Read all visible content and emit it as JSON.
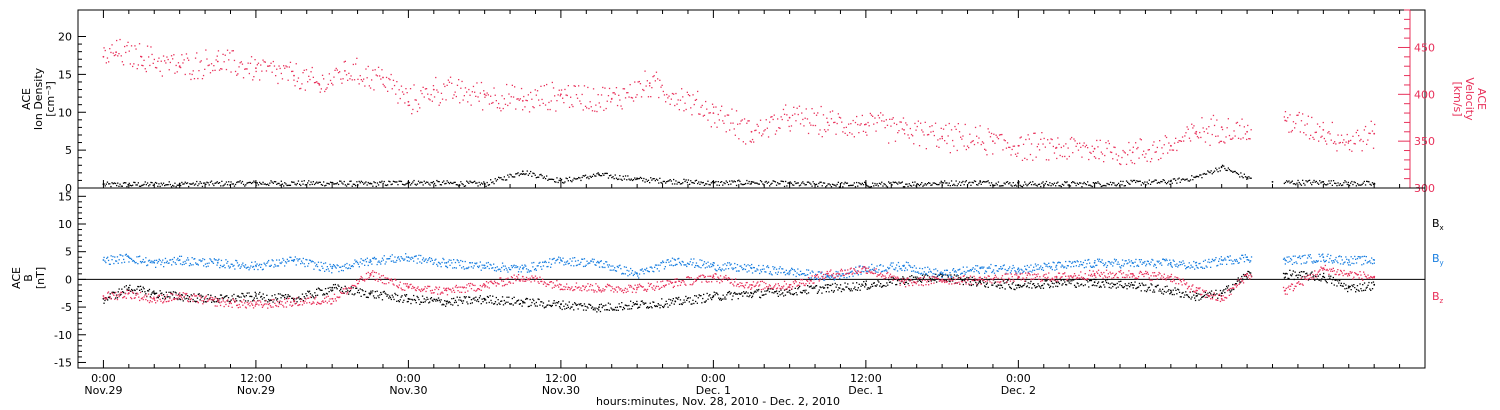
{
  "chart_data": [
    {
      "type": "scatter",
      "panel": "top",
      "ylabel_left": [
        "ACE",
        "Ion Density",
        "[cm⁻³]"
      ],
      "ylabel_right": [
        "ACE",
        "Velocity",
        "[km/s]"
      ],
      "ylim_left": [
        0,
        23.5
      ],
      "yticks_left": [
        0,
        5,
        10,
        15,
        20
      ],
      "ylim_right": [
        300,
        490
      ],
      "yticks_right": [
        300,
        350,
        400,
        450
      ],
      "colors": {
        "density": "#000000",
        "velocity": "#e8305a"
      },
      "series": [
        {
          "name": "Ion Density",
          "axis": "left",
          "color": "#000000",
          "x": [
            0,
            6,
            12,
            18,
            21,
            24,
            30,
            33,
            36,
            39,
            42,
            48,
            51,
            54,
            60,
            66,
            69,
            72,
            78,
            84,
            86,
            88,
            90,
            92,
            96,
            100
          ],
          "y": [
            0.5,
            0.6,
            0.7,
            0.7,
            0.6,
            0.8,
            0.6,
            2.2,
            1.0,
            1.8,
            1.2,
            0.7,
            0.8,
            0.6,
            0.5,
            0.7,
            0.8,
            0.6,
            0.6,
            0.9,
            1.5,
            2.8,
            1.4,
            0.8,
            0.8,
            0.6
          ]
        },
        {
          "name": "Velocity",
          "axis": "right",
          "color": "#e8305a",
          "x": [
            0,
            1,
            3,
            6,
            9,
            12,
            15,
            17,
            19,
            22,
            24,
            26,
            30,
            33,
            36,
            40,
            43,
            48,
            51,
            54,
            57,
            60,
            63,
            66,
            70,
            72,
            75,
            78,
            81,
            84,
            86,
            88,
            90,
            93,
            96,
            98,
            100
          ],
          "y": [
            440,
            445,
            440,
            430,
            435,
            428,
            420,
            410,
            425,
            418,
            392,
            405,
            400,
            393,
            400,
            395,
            412,
            380,
            360,
            375,
            370,
            368,
            362,
            355,
            350,
            345,
            343,
            342,
            338,
            345,
            360,
            365,
            360,
            372,
            362,
            350,
            358
          ]
        }
      ]
    },
    {
      "type": "scatter",
      "panel": "bottom",
      "ylabel_left": [
        "ACE",
        "B",
        "[nT]"
      ],
      "ylim": [
        -16,
        16.5
      ],
      "yticks": [
        -15,
        -10,
        -5,
        0,
        5,
        10,
        15
      ],
      "zero_line": true,
      "legend": [
        {
          "name": "Bx",
          "base": "B",
          "sub": "x",
          "color": "#000000"
        },
        {
          "name": "By",
          "base": "B",
          "sub": "y",
          "color": "#1a7fe0"
        },
        {
          "name": "Bz",
          "base": "B",
          "sub": "z",
          "color": "#e8305a"
        }
      ],
      "series": [
        {
          "name": "Bx",
          "color": "#000000",
          "x": [
            0,
            2,
            4,
            6,
            9,
            12,
            15,
            18,
            21,
            24,
            27,
            30,
            33,
            36,
            39,
            42,
            45,
            48,
            51,
            54,
            57,
            60,
            63,
            66,
            69,
            72,
            75,
            78,
            81,
            84,
            86,
            88,
            90,
            93,
            96,
            98,
            100
          ],
          "y": [
            -3.5,
            -1.5,
            -2.5,
            -3.0,
            -3.5,
            -3.0,
            -3.5,
            -1.5,
            -2.5,
            -3.5,
            -4.0,
            -3.5,
            -4.0,
            -4.5,
            -5.0,
            -4.5,
            -4.0,
            -3.0,
            -2.5,
            -2.0,
            -1.5,
            -1.0,
            0.0,
            0.5,
            -0.5,
            -1.0,
            -0.5,
            -0.5,
            -1.0,
            -2.0,
            -3.0,
            -2.5,
            1.0,
            1.0,
            0.5,
            -1.5,
            -1.0
          ]
        },
        {
          "name": "By",
          "color": "#1a7fe0",
          "x": [
            0,
            2,
            4,
            6,
            9,
            12,
            15,
            18,
            21,
            24,
            27,
            30,
            33,
            36,
            39,
            42,
            45,
            48,
            51,
            54,
            57,
            60,
            63,
            66,
            69,
            72,
            75,
            78,
            81,
            84,
            86,
            88,
            90,
            93,
            96,
            98,
            100
          ],
          "y": [
            3.5,
            4.0,
            3.0,
            3.5,
            3.0,
            2.5,
            3.5,
            2.0,
            3.5,
            4.0,
            3.0,
            2.5,
            2.0,
            3.5,
            3.0,
            1.0,
            3.5,
            2.5,
            2.0,
            1.5,
            0.5,
            2.0,
            2.5,
            1.0,
            2.0,
            2.0,
            2.5,
            3.0,
            3.0,
            3.0,
            2.5,
            3.5,
            4.0,
            3.5,
            4.0,
            3.5,
            3.5
          ]
        },
        {
          "name": "Bz",
          "color": "#e8305a",
          "x": [
            0,
            2,
            4,
            6,
            9,
            12,
            15,
            18,
            21,
            24,
            27,
            30,
            33,
            36,
            39,
            42,
            45,
            48,
            51,
            54,
            57,
            60,
            63,
            66,
            69,
            72,
            75,
            78,
            81,
            84,
            86,
            88,
            90,
            93,
            96,
            98,
            100
          ],
          "y": [
            -3.0,
            -2.5,
            -3.5,
            -3.0,
            -4.0,
            -4.5,
            -4.0,
            -3.5,
            1.0,
            -1.5,
            -2.0,
            -1.0,
            0.5,
            -1.0,
            -1.5,
            -1.5,
            -0.5,
            0.5,
            -1.0,
            -1.0,
            1.0,
            2.0,
            -0.5,
            0.0,
            0.0,
            0.5,
            0.5,
            1.0,
            1.0,
            0.5,
            -2.0,
            -3.5,
            1.0,
            -2.0,
            2.0,
            1.0,
            0.5
          ]
        }
      ]
    }
  ],
  "x_axis": {
    "range_hours": [
      -2,
      104
    ],
    "ticks": [
      {
        "hour": 0,
        "time": "0:00",
        "date": "Nov.29"
      },
      {
        "hour": 12,
        "time": "12:00",
        "date": "Nov.29"
      },
      {
        "hour": 24,
        "time": "0:00",
        "date": "Nov.30"
      },
      {
        "hour": 36,
        "time": "12:00",
        "date": "Nov.30"
      },
      {
        "hour": 48,
        "time": "0:00",
        "date": "Dec. 1"
      },
      {
        "hour": 60,
        "time": "12:00",
        "date": "Dec. 1"
      },
      {
        "hour": 72,
        "time": "0:00",
        "date": "Dec. 2"
      }
    ],
    "label": "hours:minutes, Nov. 28, 2010 - Dec.  2, 2010"
  }
}
